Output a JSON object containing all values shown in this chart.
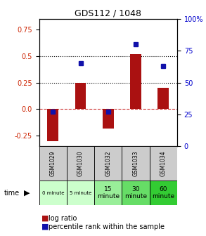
{
  "title": "GDS112 / 1048",
  "samples": [
    "GSM1029",
    "GSM1030",
    "GSM1032",
    "GSM1033",
    "GSM1034"
  ],
  "time_labels": [
    "0 minute",
    "5 minute",
    "15\nminute",
    "30\nminute",
    "60\nminute"
  ],
  "time_colors": [
    "#ccffcc",
    "#ccffcc",
    "#99ee99",
    "#66dd66",
    "#33cc33"
  ],
  "log_ratios": [
    -0.3,
    0.25,
    -0.18,
    0.52,
    0.2
  ],
  "percentile_ranks": [
    27,
    65,
    27,
    80,
    63
  ],
  "ylim_left": [
    -0.35,
    0.85
  ],
  "ylim_right": [
    0,
    100
  ],
  "bar_color": "#aa1111",
  "dot_color": "#1111aa",
  "hline_color": "#cc3333",
  "dotline_color": "#000000",
  "bg_color": "#ffffff",
  "plot_bg": "#ffffff",
  "sample_bg": "#cccccc",
  "legend_bar_label": "log ratio",
  "legend_dot_label": "percentile rank within the sample",
  "time_label": "time",
  "yticks_left": [
    -0.25,
    0.0,
    0.25,
    0.5,
    0.75
  ],
  "yticks_right": [
    0,
    25,
    50,
    75,
    100
  ],
  "dotted_lines": [
    0.25,
    0.5
  ]
}
